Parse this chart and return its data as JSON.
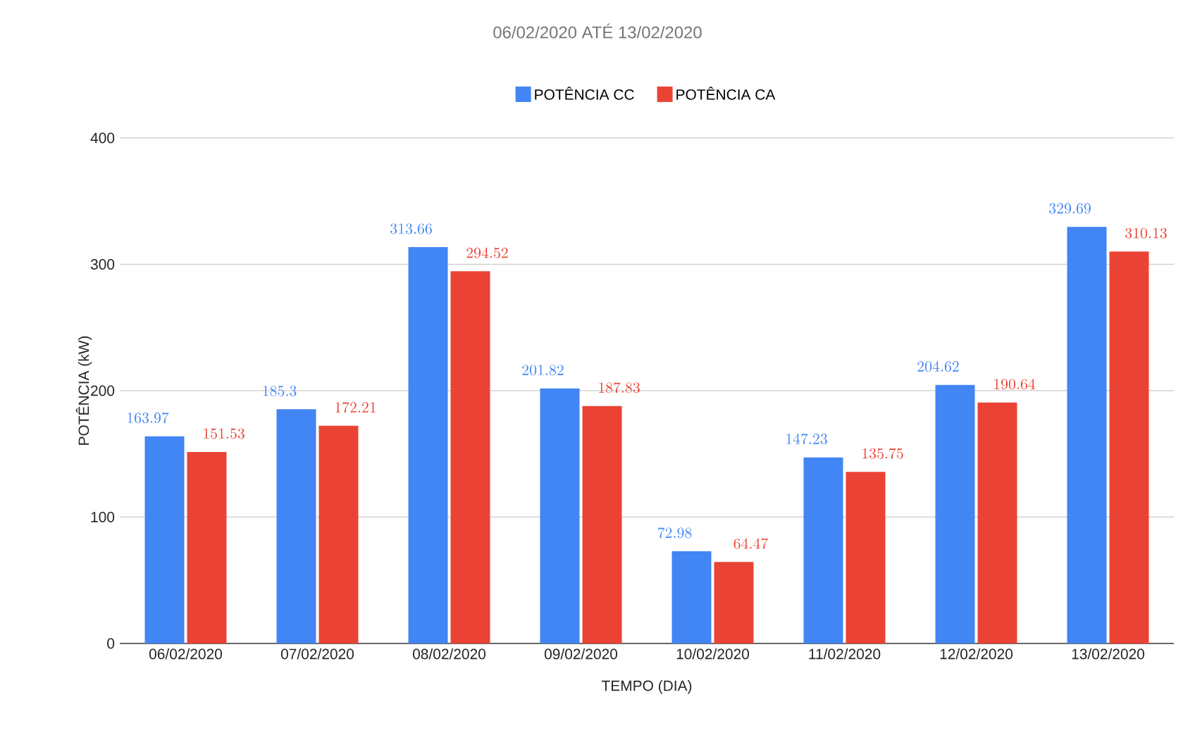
{
  "chart_data": {
    "type": "bar",
    "title": "06/02/2020 ATÉ 13/02/2020",
    "xlabel": "TEMPO (DIA)",
    "ylabel": "POTÊNCIA (kW)",
    "categories": [
      "06/02/2020",
      "07/02/2020",
      "08/02/2020",
      "09/02/2020",
      "10/02/2020",
      "11/02/2020",
      "12/02/2020",
      "13/02/2020"
    ],
    "series": [
      {
        "name": "POTÊNCIA CC",
        "color": "#4285f4",
        "values": [
          163.97,
          185.3,
          313.66,
          201.82,
          72.98,
          147.23,
          204.62,
          329.69
        ]
      },
      {
        "name": "POTÊNCIA CA",
        "color": "#ea4335",
        "values": [
          151.53,
          172.21,
          294.52,
          187.83,
          64.47,
          135.75,
          190.64,
          310.13
        ]
      }
    ],
    "ylim": [
      0,
      400
    ],
    "yticks": [
      0,
      100,
      200,
      300,
      400
    ],
    "grid": "y",
    "legend": "top",
    "data_labels": true
  }
}
